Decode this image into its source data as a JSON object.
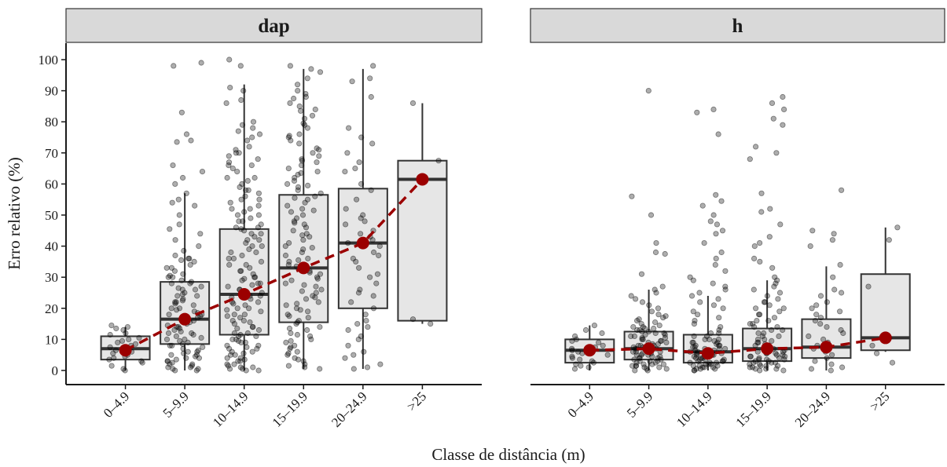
{
  "chart_data": {
    "type": "boxplot",
    "xlabel": "Classe de distância (m)",
    "ylabel": "Erro relativo (%)",
    "ylim": [
      0,
      100
    ],
    "y_ticks": [
      0,
      10,
      20,
      30,
      40,
      50,
      60,
      70,
      80,
      90,
      100
    ],
    "categories": [
      "0–4.9",
      "5–9.9",
      "10–14.9",
      "15–19.9",
      "20–24.9",
      ">25"
    ],
    "grid": false,
    "legend": "none",
    "colors": {
      "strip_fill": "#d9d9d9",
      "box_fill": "#e6e6e6",
      "box_stroke": "#333333",
      "points": "#000000",
      "mean": "#9b0000"
    },
    "facets": [
      {
        "name": "dap",
        "box": [
          {
            "category": "0–4.9",
            "min": 0,
            "q1": 3.5,
            "median": 7,
            "q3": 11,
            "max": 14
          },
          {
            "category": "5–9.9",
            "min": 0,
            "q1": 8.5,
            "median": 16.5,
            "q3": 28.5,
            "max": 57
          },
          {
            "category": "10–14.9",
            "min": 0,
            "q1": 11.5,
            "median": 24.5,
            "q3": 45.5,
            "max": 92
          },
          {
            "category": "15–19.9",
            "min": 0.5,
            "q1": 15.5,
            "median": 33,
            "q3": 56.5,
            "max": 97
          },
          {
            "category": "20–24.9",
            "min": 0.5,
            "q1": 20,
            "median": 41,
            "q3": 58.5,
            "max": 97
          },
          {
            "category": ">25",
            "min": 15,
            "q1": 16,
            "median": 61.5,
            "q3": 67.5,
            "max": 86
          }
        ],
        "means": [
          6.5,
          16.5,
          24.5,
          33,
          41,
          61.5
        ],
        "points": [
          [
            0,
            14,
            14.5,
            13.5,
            13,
            12,
            11.5,
            10.5,
            10,
            9.5,
            9,
            8.5,
            8,
            7.5,
            7,
            6.5,
            6,
            5.5,
            5,
            4.5,
            4,
            3.5,
            3,
            2.5,
            1.5,
            0.5
          ],
          [
            99,
            98,
            83,
            76,
            74,
            73.5,
            66,
            64,
            62,
            60,
            57,
            55,
            54,
            53,
            50,
            47,
            45.5,
            44,
            42,
            40,
            38.5,
            37,
            36,
            35.5,
            35,
            34,
            33,
            32,
            31,
            30.5,
            30,
            29,
            28.5,
            28,
            27,
            26.5,
            26,
            25,
            24.5,
            24,
            23,
            22.5,
            22,
            21.5,
            21,
            20,
            19.5,
            19,
            18.5,
            18,
            17.5,
            17,
            16,
            15.5,
            15,
            14.5,
            14,
            13.5,
            13,
            12.5,
            12,
            11.5,
            11,
            10.5,
            10,
            9.5,
            9,
            8.5,
            8,
            7.5,
            7,
            6.5,
            6,
            5.5,
            5,
            4.5,
            4,
            3.5,
            3,
            2.5,
            2,
            1.5,
            1,
            0.5,
            0,
            0,
            0.5,
            1,
            2,
            3,
            4,
            5,
            6,
            8,
            10,
            12,
            14,
            16,
            18,
            20,
            22,
            24,
            26,
            28,
            30,
            33,
            36
          ],
          [
            100,
            98,
            91,
            90,
            87,
            86,
            80,
            79,
            78,
            77,
            76,
            75,
            72,
            71,
            70,
            69,
            68,
            67,
            66,
            65,
            64,
            62,
            61,
            60,
            59,
            58,
            57,
            56,
            55,
            54,
            53,
            52,
            51,
            50,
            49,
            48,
            47,
            46,
            45.5,
            45,
            44,
            43,
            42,
            41,
            40,
            39,
            38,
            37,
            36,
            35,
            34,
            33,
            32,
            31,
            30,
            29.5,
            29,
            28,
            27.5,
            27,
            26,
            25.5,
            25,
            24,
            23.5,
            23,
            22,
            21.5,
            21,
            20,
            19.5,
            19,
            18,
            17.5,
            17,
            16,
            15.5,
            15,
            14,
            13.5,
            13,
            12,
            11.5,
            11,
            10,
            9.5,
            9,
            8,
            7.5,
            7,
            6,
            5.5,
            5,
            4,
            3.5,
            3,
            2,
            1.5,
            1,
            0.5,
            0,
            0,
            0.5,
            1,
            2,
            3,
            4,
            5,
            6,
            7,
            8,
            9,
            10,
            11,
            12,
            14,
            16,
            18,
            20,
            22,
            24,
            26,
            28,
            30,
            32,
            34,
            36,
            38,
            40,
            42,
            44,
            46,
            48,
            50,
            52,
            55,
            58,
            62,
            66,
            70,
            74
          ],
          [
            98,
            97,
            96,
            94,
            92,
            90,
            89,
            88,
            86,
            85,
            84,
            82,
            81,
            79,
            78,
            76,
            75,
            74,
            73,
            71,
            70,
            69,
            68,
            67,
            66,
            65,
            64,
            63,
            62,
            61,
            60,
            59,
            58,
            57,
            56,
            55,
            54,
            53,
            52,
            51,
            50,
            49,
            48,
            47,
            46,
            45,
            44,
            43,
            42,
            41,
            40,
            39,
            38,
            37,
            36,
            35,
            34,
            33.5,
            33,
            32,
            31,
            30,
            29,
            28,
            27,
            26,
            25,
            24,
            23,
            22,
            21,
            20,
            19,
            18,
            17,
            16,
            15,
            14,
            13,
            12,
            11,
            10,
            9,
            8,
            7,
            6,
            5,
            4,
            3,
            2,
            1,
            0.5,
            1.5,
            3.5,
            5.5,
            7.5,
            9.5,
            11.5,
            13.5,
            15.5,
            17.5,
            19.5,
            21.5,
            23.5,
            25.5,
            27.5,
            29.5,
            31.5,
            35.5,
            39.5,
            43.5,
            47.5,
            51.5,
            55.5,
            59.5,
            63.5,
            67.5,
            71.5,
            75.5,
            79.5,
            83.5,
            87.5
          ],
          [
            98,
            94,
            93,
            88,
            78,
            75,
            73,
            70,
            67,
            65,
            64,
            60,
            58,
            55,
            52,
            50,
            49,
            48,
            47,
            45,
            44,
            43,
            42,
            41,
            40,
            38,
            37,
            36,
            35,
            33,
            31,
            30,
            28,
            26,
            25,
            24,
            22,
            20,
            18,
            16,
            15,
            14,
            13,
            11,
            10,
            8,
            6,
            5,
            4,
            2,
            1,
            0.5
          ],
          [
            86,
            67.5,
            16.5,
            15
          ]
        ]
      },
      {
        "name": "h",
        "box": [
          {
            "category": "0–4.9",
            "min": 0,
            "q1": 2.5,
            "median": 6.5,
            "q3": 10,
            "max": 14.5
          },
          {
            "category": "5–9.9",
            "min": 0,
            "q1": 3.5,
            "median": 7,
            "q3": 12.5,
            "max": 26
          },
          {
            "category": "10–14.9",
            "min": 0,
            "q1": 2.5,
            "median": 6,
            "q3": 11.5,
            "max": 24
          },
          {
            "category": "15–19.9",
            "min": 0,
            "q1": 3,
            "median": 7,
            "q3": 13.5,
            "max": 29
          },
          {
            "category": "20–24.9",
            "min": 0,
            "q1": 4,
            "median": 7.5,
            "q3": 16.5,
            "max": 33.5
          },
          {
            "category": ">25",
            "min": 6,
            "q1": 6.5,
            "median": 10.5,
            "q3": 31,
            "max": 46
          }
        ],
        "means": [
          6.5,
          7,
          5.5,
          7,
          7.5,
          10.5
        ],
        "points": [
          [
            14.5,
            13,
            12,
            11,
            10,
            9.5,
            9,
            8,
            7.5,
            7,
            6.5,
            6,
            5.5,
            5,
            4.5,
            4,
            3.5,
            3,
            2.5,
            2,
            1.5,
            1,
            0.5
          ],
          [
            90,
            56,
            50,
            41,
            38,
            37.5,
            31,
            27,
            26,
            25,
            24,
            23,
            22,
            21,
            20,
            19,
            18,
            17.5,
            17,
            16.5,
            16,
            15.5,
            15,
            14.5,
            14,
            13.5,
            13,
            12.5,
            12,
            11.5,
            11,
            10.5,
            10,
            9.5,
            9,
            8.5,
            8,
            7.5,
            7,
            6.5,
            6,
            5.5,
            5,
            4.5,
            4,
            3.5,
            3,
            2.5,
            2,
            1.5,
            1,
            0.5,
            0,
            0,
            0.5,
            1,
            1.5,
            2,
            3,
            4,
            5,
            6,
            7,
            8,
            9,
            10,
            11,
            12,
            13,
            14,
            2.5,
            3.5,
            4.5,
            5.5,
            6.5,
            7.5,
            8.5,
            9.5,
            10.5,
            11.5,
            12.5,
            13.5,
            1.5,
            2,
            3,
            4,
            5,
            6,
            7,
            8
          ],
          [
            84,
            83,
            76,
            56.5,
            54.5,
            53,
            50,
            48,
            47,
            45,
            44,
            41,
            38,
            36,
            34,
            32,
            30,
            29,
            28,
            27,
            26,
            25,
            24,
            23,
            22,
            21,
            20,
            19,
            18,
            17,
            16,
            15,
            14,
            13,
            12,
            11,
            10,
            9.5,
            9,
            8.5,
            8,
            7.5,
            7,
            6.5,
            6,
            5.5,
            5,
            4.5,
            4,
            3.5,
            3,
            2.5,
            2,
            1.5,
            1,
            0.5,
            0,
            0,
            0.5,
            1,
            1.5,
            2,
            2.5,
            3,
            3.5,
            4,
            4.5,
            5,
            5.5,
            6,
            6.5,
            7,
            7.5,
            8,
            9,
            10,
            11,
            12,
            1,
            2,
            3,
            4,
            5,
            6,
            7,
            8,
            9,
            10,
            0.5,
            1.5,
            2.5,
            3.5
          ],
          [
            88,
            86,
            84,
            81,
            79,
            72,
            70,
            68,
            57,
            52,
            51,
            47,
            43,
            41,
            40,
            36,
            35,
            33,
            30,
            29,
            28,
            27,
            26,
            25,
            24,
            23,
            22,
            21,
            20,
            19,
            18,
            17,
            16,
            15,
            14,
            13,
            12,
            11,
            10,
            9.5,
            9,
            8.5,
            8,
            7.5,
            7,
            6.5,
            6,
            5.5,
            5,
            4.5,
            4,
            3.5,
            3,
            2.5,
            2,
            1.5,
            1,
            0.5,
            0,
            0,
            0.5,
            1,
            1.5,
            2,
            2.5,
            3,
            3.5,
            4,
            4.5,
            5,
            5.5,
            6,
            6.5,
            7,
            8,
            9,
            10,
            11,
            12,
            13,
            14,
            15,
            16,
            18,
            20,
            22,
            0.5,
            1.5,
            2.5,
            3.5,
            4.5,
            5.5,
            6.5
          ],
          [
            58,
            45,
            44,
            42,
            40,
            34,
            30,
            26,
            25,
            24,
            22,
            21,
            20,
            19,
            18,
            17,
            16,
            15,
            14,
            13,
            12,
            11,
            10,
            9,
            8,
            7,
            6,
            5,
            4,
            3,
            2,
            1,
            0.5,
            0
          ],
          [
            46,
            42,
            27,
            10.5,
            8,
            5.5,
            2.5
          ]
        ]
      }
    ]
  }
}
